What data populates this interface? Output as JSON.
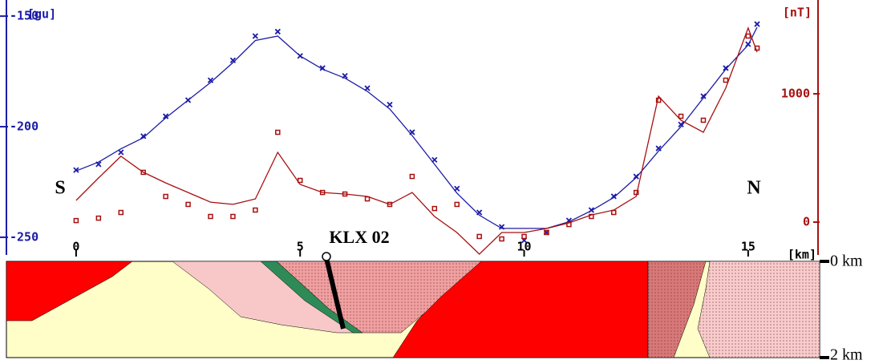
{
  "chart_data": {
    "type": "profile",
    "y_label": "[gu]",
    "y2_label": "[nT]",
    "x_label": "[km]",
    "xlim": [
      -1.52,
      16.56
    ],
    "xticks": [
      0,
      5,
      10,
      15
    ],
    "ylim": [
      -258,
      -145.6
    ],
    "yticks": [
      -150,
      -200,
      -250
    ],
    "y2lim": [
      -256,
      1681
    ],
    "y2ticks": [
      0,
      1000
    ],
    "x": [
      0,
      0.5,
      1,
      1.5,
      2,
      2.5,
      3,
      3.5,
      4,
      4.5,
      5,
      5.5,
      6,
      6.5,
      7,
      7.5,
      8,
      8.5,
      9,
      9.5,
      10,
      10.5,
      11,
      11.5,
      12,
      12.5,
      13,
      13.5,
      14,
      14.5,
      15,
      15.2
    ],
    "series": [
      {
        "color": "#1c1ca8",
        "marker": "cross",
        "values": [
          -219.6,
          -217,
          -211.6,
          -204.3,
          -195.3,
          -188,
          -179,
          -170,
          -159,
          -157,
          -168,
          -173.5,
          -177,
          -182.6,
          -190,
          -202.5,
          -215,
          -228,
          -238.8,
          -245.3,
          -251.4,
          -247.8,
          -242.4,
          -237.7,
          -231.5,
          -222.5,
          -209.8,
          -199,
          -186.2,
          -173.5,
          -162.7,
          -153.6
        ]
      },
      {
        "color": "#1c1ca8",
        "marker": "line",
        "values": [
          -220,
          -216,
          -210,
          -205,
          -196,
          -188,
          -180,
          -171,
          -161,
          -159,
          -168,
          -174,
          -178,
          -184,
          -192,
          -204,
          -217,
          -230,
          -240,
          -246,
          -246,
          -246,
          -243,
          -238,
          -232,
          -223,
          -211,
          -200,
          -187,
          -174,
          -163,
          -155
        ]
      },
      {
        "color": "#a81010",
        "marker": "square",
        "axis": "y2",
        "values": [
          12,
          31,
          75,
          388,
          200,
          138,
          44,
          44,
          94,
          700,
          325,
          231,
          219,
          181,
          138,
          356,
          106,
          138,
          -112,
          -131,
          -112,
          -81,
          -19,
          44,
          75,
          231,
          950,
          825,
          794,
          1106,
          1450,
          1356
        ]
      },
      {
        "color": "#a81010",
        "marker": "line",
        "axis": "y2",
        "values": [
          169,
          344,
          513,
          388,
          306,
          231,
          156,
          138,
          181,
          544,
          294,
          231,
          219,
          200,
          138,
          231,
          44,
          -81,
          -250,
          -81,
          -81,
          -50,
          -6,
          56,
          94,
          200,
          981,
          794,
          700,
          1044,
          1513,
          1325
        ]
      }
    ],
    "annotations": [
      "S",
      "N",
      "KLX 02"
    ],
    "section_depth_labels": [
      "0 km",
      "2 km"
    ]
  }
}
